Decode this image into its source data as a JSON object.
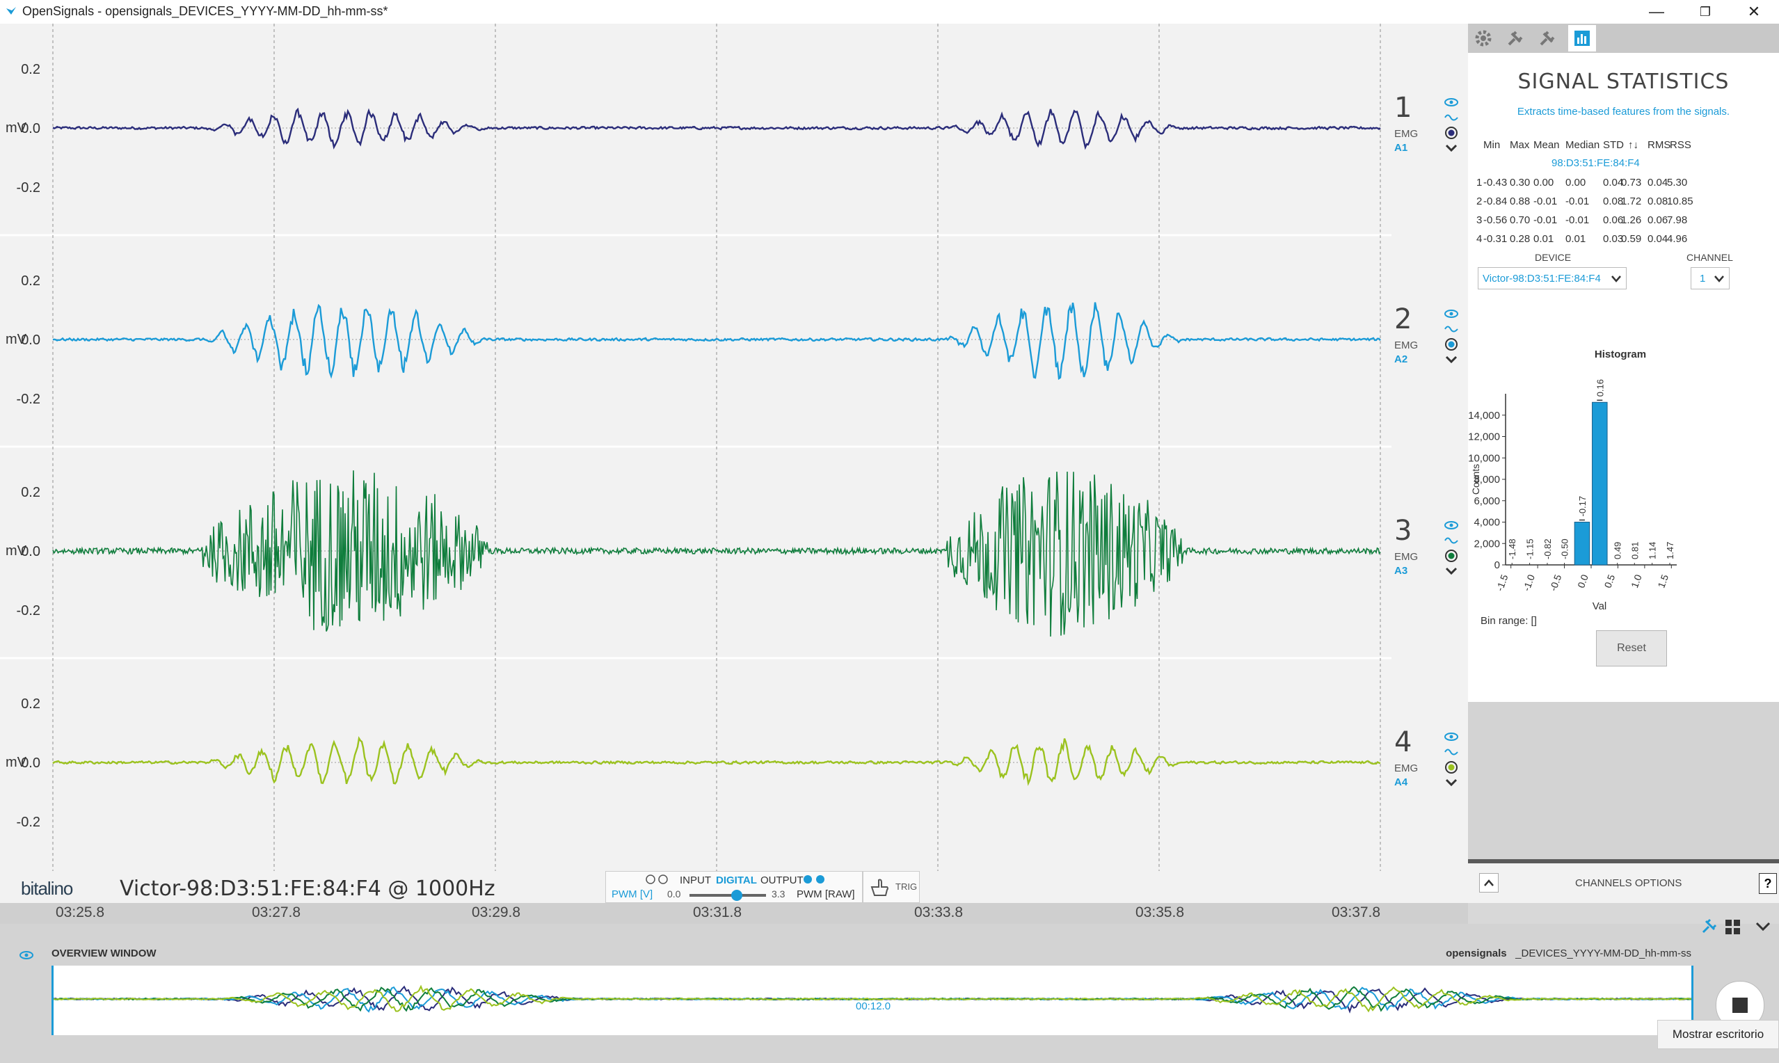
{
  "window": {
    "title": "OpenSignals - opensignals_DEVICES_YYYY-MM-DD_hh-mm-ss*",
    "minimize": "—",
    "restore": "❐",
    "close": "✕"
  },
  "channels": [
    {
      "number": "1",
      "type": "EMG",
      "source": "A1",
      "color": "#2b2d7a",
      "unit": "mV"
    },
    {
      "number": "2",
      "type": "EMG",
      "source": "A2",
      "color": "#1b9bd7",
      "unit": "mV"
    },
    {
      "number": "3",
      "type": "EMG",
      "source": "A3",
      "color": "#0f7d3c",
      "unit": "mV"
    },
    {
      "number": "4",
      "type": "EMG",
      "source": "A4",
      "color": "#9bc21f",
      "unit": "mV"
    }
  ],
  "y_ticks": [
    "0.2",
    "0.0",
    "-0.2"
  ],
  "bottom_bar": {
    "brand": "bitalino",
    "device_label": "Victor-98:D3:51:FE:84:F4 @ 1000Hz",
    "input_label": "INPUT",
    "digital_label": "DIGITAL",
    "output_label": "OUTPUT",
    "pwm_v": "PWM [V]",
    "pwm_min": "0.0",
    "pwm_max": "3.3",
    "pwm_raw": "PWM [RAW]",
    "trig": "TRIG",
    "pwm_level": 0.62
  },
  "time_ticks": [
    "03:25.8",
    "03:27.8",
    "03:29.8",
    "03:31.8",
    "03:33.8",
    "03:35.8",
    "03:37.8"
  ],
  "overview": {
    "label": "OVERVIEW WINDOW",
    "file_prefix": "opensignals",
    "file_suffix": "_DEVICES_YYYY-MM-DD_hh-mm-ss",
    "time": "00:12.0"
  },
  "statistics": {
    "title": "SIGNAL STATISTICS",
    "subtitle": "Extracts time-based features from the signals.",
    "headers": [
      "Min",
      "Max",
      "Mean",
      "Median",
      "STD",
      "↑↓",
      "RMS",
      "RSS"
    ],
    "device_address": "98:D3:51:FE:84:F4",
    "rows": [
      {
        "ch": "1",
        "min": "-0.43",
        "max": "0.30",
        "mean": "0.00",
        "median": "0.00",
        "std": "0.04",
        "ud": "0.73",
        "rms": "0.04",
        "rss": "5.30"
      },
      {
        "ch": "2",
        "min": "-0.84",
        "max": "0.88",
        "mean": "-0.01",
        "median": "-0.01",
        "std": "0.08",
        "ud": "1.72",
        "rms": "0.08",
        "rss": "10.85"
      },
      {
        "ch": "3",
        "min": "-0.56",
        "max": "0.70",
        "mean": "-0.01",
        "median": "-0.01",
        "std": "0.06",
        "ud": "1.26",
        "rms": "0.06",
        "rss": "7.98"
      },
      {
        "ch": "4",
        "min": "-0.31",
        "max": "0.28",
        "mean": "0.01",
        "median": "0.01",
        "std": "0.03",
        "ud": "0.59",
        "rms": "0.04",
        "rss": "4.96"
      }
    ],
    "device_label": "DEVICE",
    "channel_label": "CHANNEL",
    "device_value": "Victor-98:D3:51:FE:84:F4",
    "channel_value": "1",
    "bin_range": "Bin range: []",
    "reset": "Reset"
  },
  "chart_data": {
    "type": "bar",
    "title": "Histogram",
    "xlabel": "Val",
    "ylabel": "Counts",
    "bin_labels": [
      "-1.48",
      "-1.15",
      "-0.82",
      "-0.50",
      "-0.17",
      "0.16",
      "0.49",
      "0.81",
      "1.14",
      "1.47"
    ],
    "x_centers": [
      -1.48,
      -1.15,
      -0.82,
      -0.5,
      -0.17,
      0.16,
      0.49,
      0.81,
      1.14,
      1.47
    ],
    "values": [
      0,
      0,
      0,
      0,
      4000,
      15200,
      0,
      0,
      0,
      0
    ],
    "x_ticks": [
      "-1.5",
      "-1.0",
      "-0.5",
      "0.0",
      "0.5",
      "1.0",
      "1.5"
    ],
    "y_ticks": [
      "0",
      "2,000",
      "4,000",
      "6,000",
      "8,000",
      "10,000",
      "12,000",
      "14,000"
    ],
    "ylim": [
      0,
      16000
    ],
    "xlim": [
      -1.6,
      1.6
    ],
    "bar_color": "#1b9bd7"
  },
  "channels_options": "CHANNELS OPTIONS",
  "tooltip": "Mostrar escritorio"
}
